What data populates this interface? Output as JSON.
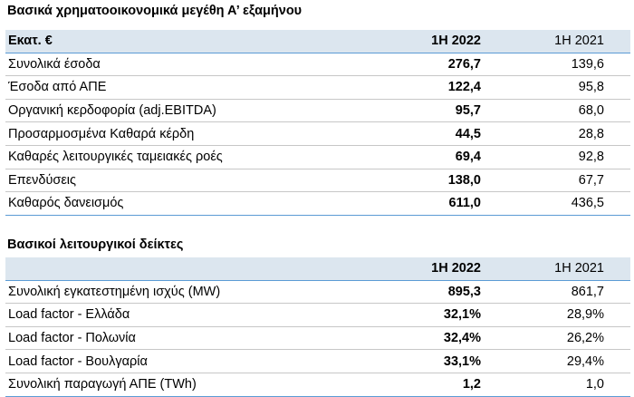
{
  "table1": {
    "title": "Βασικά χρηματοοικονομικά μεγέθη Α’ εξαμήνου",
    "header": {
      "label": "Εκατ. €",
      "cur": "1Η 2022",
      "prev": "1Η 2021"
    },
    "rows": [
      {
        "label": "Συνολικά έσοδα",
        "cur": "276,7",
        "prev": "139,6"
      },
      {
        "label": "Έσοδα από ΑΠΕ",
        "cur": "122,4",
        "prev": "95,8"
      },
      {
        "label": "Οργανική κερδοφορία (adj.EBITDA)",
        "cur": "95,7",
        "prev": "68,0"
      },
      {
        "label": "Προσαρμοσμένα Καθαρά κέρδη",
        "cur": "44,5",
        "prev": "28,8"
      },
      {
        "label": "Καθαρές λειτουργικές ταμειακές ροές",
        "cur": "69,4",
        "prev": "92,8"
      },
      {
        "label": "Επενδύσεις",
        "cur": "138,0",
        "prev": "67,7"
      },
      {
        "label": "Καθαρός δανεισμός",
        "cur": "611,0",
        "prev": "436,5"
      }
    ]
  },
  "table2": {
    "title": "Βασικοί λειτουργικοί δείκτες",
    "header": {
      "label": "",
      "cur": "1Η 2022",
      "prev": "1Η 2021"
    },
    "rows": [
      {
        "label": "Συνολική εγκατεστημένη ισχύς (MW)",
        "cur": "895,3",
        "prev": "861,7"
      },
      {
        "label": "Load factor - Ελλάδα",
        "cur": "32,1%",
        "prev": "28,9%"
      },
      {
        "label": "Load factor - Πολωνία",
        "cur": "32,4%",
        "prev": "26,2%"
      },
      {
        "label": "Load factor - Βουλγαρία",
        "cur": "33,1%",
        "prev": "29,4%"
      },
      {
        "label": "Συνολική παραγωγή ΑΠΕ (TWh)",
        "cur": "1,2",
        "prev": "1,0"
      }
    ]
  },
  "colors": {
    "header_background": "#dce6ef",
    "accent_line": "#5b9bd5",
    "row_divider": "#c7c7c7"
  }
}
